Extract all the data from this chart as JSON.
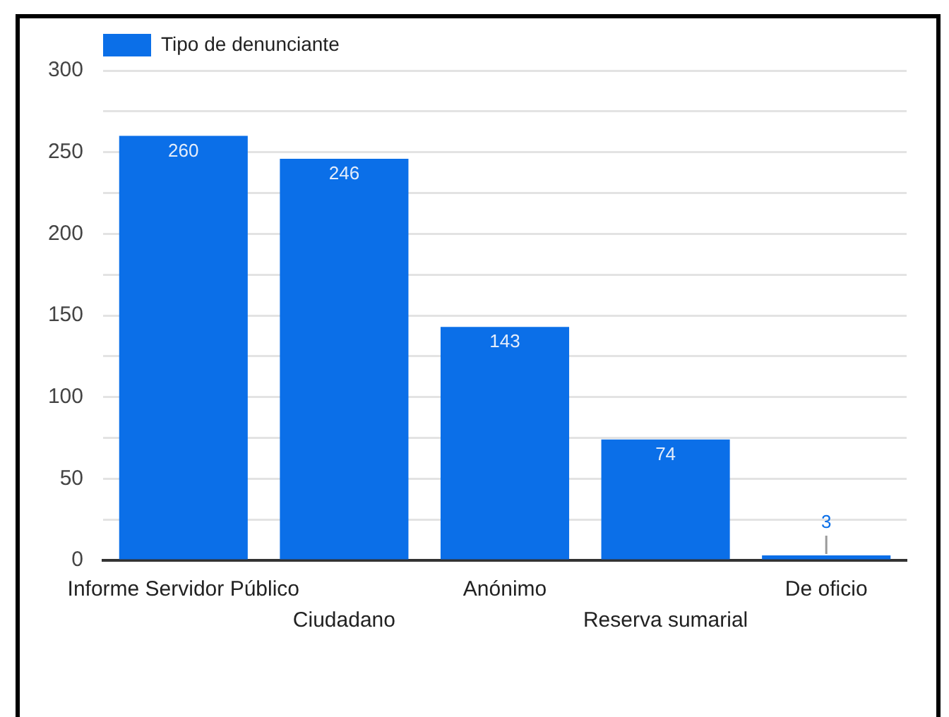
{
  "chart_data": {
    "type": "bar",
    "categories": [
      "Informe Servidor Público",
      "Ciudadano",
      "Anónimo",
      "Reserva sumarial",
      "De oficio"
    ],
    "series": [
      {
        "name": "Tipo de denunciante",
        "color": "#0b6fe8",
        "values": [
          260,
          246,
          143,
          74,
          3
        ]
      }
    ],
    "ylim": [
      0,
      300
    ],
    "yticks": [
      0,
      {
        "value": 25,
        "label": null
      },
      50,
      {
        "value": 75,
        "label": null
      },
      100,
      {
        "value": 125,
        "label": null
      },
      150,
      {
        "value": 175,
        "label": null
      },
      200,
      {
        "value": 225,
        "label": null
      },
      250,
      {
        "value": 275,
        "label": null
      },
      300
    ],
    "grid": "y",
    "legend": "top left",
    "data_labels": true
  }
}
